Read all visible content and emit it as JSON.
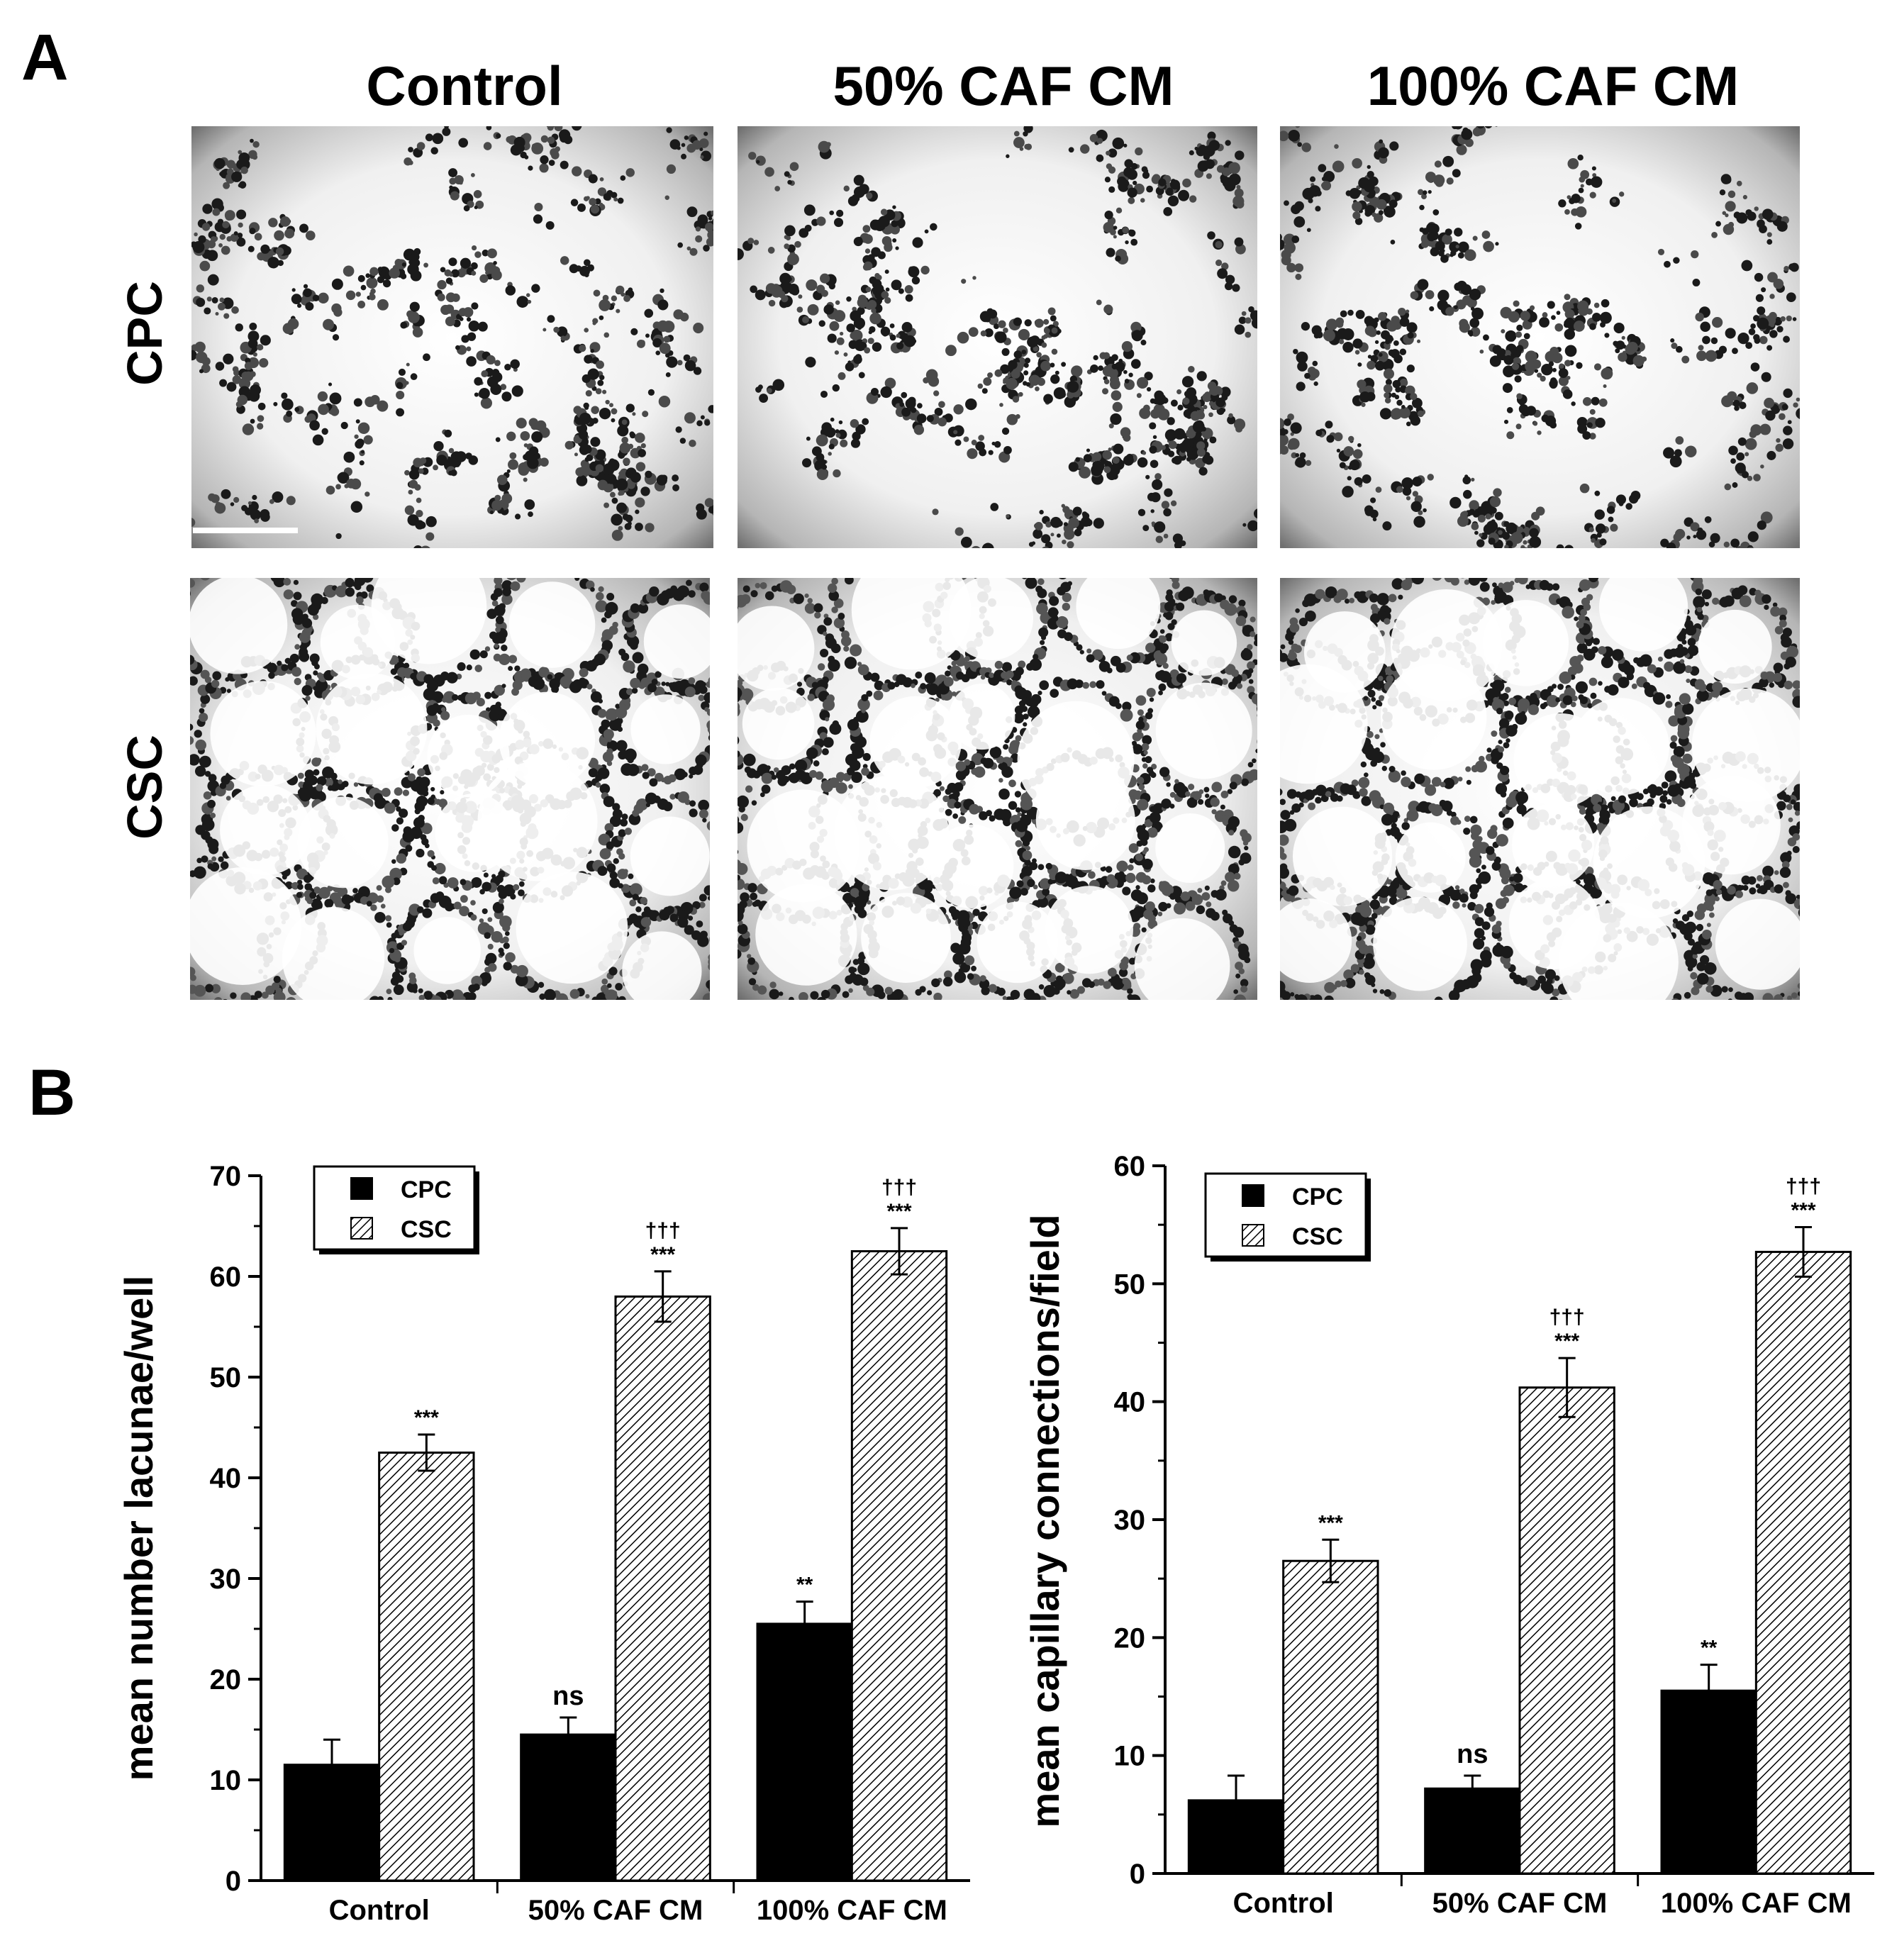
{
  "panel_a": {
    "letter": "A",
    "columns": [
      "Control",
      "50% CAF CM",
      "100% CAF CM"
    ],
    "rows": [
      "CPC",
      "CSC"
    ]
  },
  "panel_b": {
    "letter": "B"
  },
  "colors": {
    "cpc": "#000000",
    "csc_hatch": "#000000",
    "background": "#ffffff"
  },
  "chart_data": [
    {
      "type": "bar",
      "title": "",
      "xlabel": "",
      "ylabel": "mean number lacunae/well",
      "categories": [
        "Control",
        "50% CAF CM",
        "100% CAF CM"
      ],
      "ylim": [
        0,
        70
      ],
      "yticks": [
        0,
        10,
        20,
        30,
        40,
        50,
        60,
        70
      ],
      "legend": "top-left",
      "series": [
        {
          "name": "CPC",
          "values": [
            11.5,
            14.5,
            25.5
          ],
          "errors": [
            2.5,
            1.7,
            2.2
          ],
          "markers": [
            "",
            "ns",
            "**"
          ]
        },
        {
          "name": "CSC",
          "values": [
            42.5,
            58,
            62.5
          ],
          "errors": [
            1.8,
            2.5,
            2.3
          ],
          "markers": [
            "***",
            "†††\n***",
            "†††\n***"
          ]
        }
      ]
    },
    {
      "type": "bar",
      "title": "",
      "xlabel": "",
      "ylabel": "mean capillary connections/field",
      "categories": [
        "Control",
        "50% CAF CM",
        "100% CAF CM"
      ],
      "ylim": [
        0,
        60
      ],
      "yticks": [
        0,
        10,
        20,
        30,
        40,
        50,
        60
      ],
      "legend": "top-left",
      "series": [
        {
          "name": "CPC",
          "values": [
            6.2,
            7.2,
            15.5
          ],
          "errors": [
            2.1,
            1.1,
            2.2
          ],
          "markers": [
            "",
            "ns",
            "**"
          ]
        },
        {
          "name": "CSC",
          "values": [
            26.5,
            41.2,
            52.7
          ],
          "errors": [
            1.8,
            2.5,
            2.1
          ],
          "markers": [
            "***",
            "†††\n***",
            "†††\n***"
          ]
        }
      ]
    }
  ]
}
